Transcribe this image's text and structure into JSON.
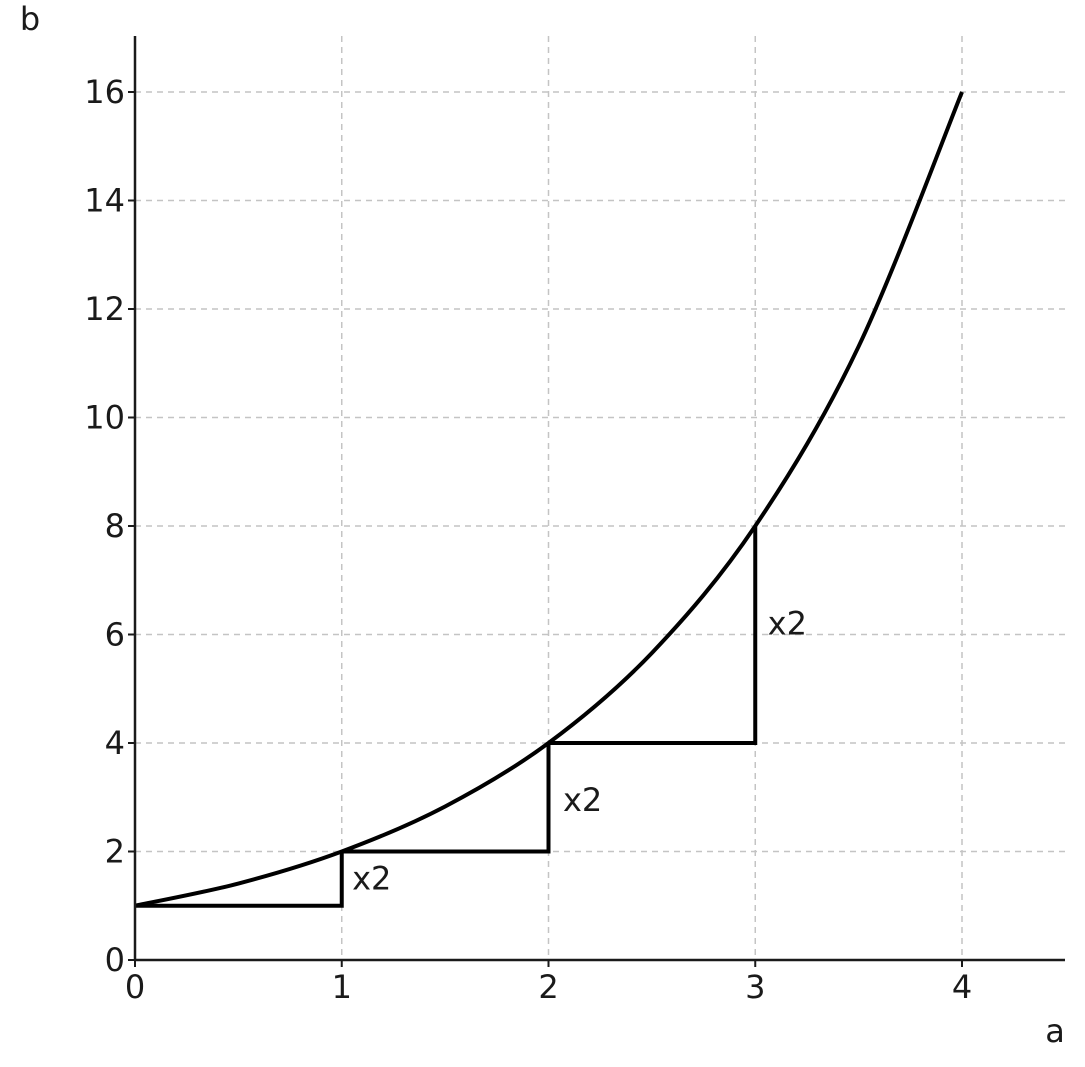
{
  "chart_data": {
    "type": "line",
    "title": "",
    "xlabel": "a",
    "ylabel": "b",
    "xlim": [
      0,
      4.5
    ],
    "ylim": [
      0,
      17
    ],
    "xticks": [
      0,
      1,
      2,
      3,
      4
    ],
    "yticks": [
      0,
      2,
      4,
      6,
      8,
      10,
      12,
      14,
      16
    ],
    "xtick_labels": [
      "0",
      "1",
      "2",
      "3",
      "4"
    ],
    "ytick_labels": [
      "0",
      "2",
      "4",
      "6",
      "8",
      "10",
      "12",
      "14",
      "16"
    ],
    "grid": true,
    "series": [
      {
        "x": [
          0,
          0.5,
          1,
          1.5,
          2,
          2.5,
          3,
          3.5,
          4
        ],
        "y": [
          1,
          1.41,
          2,
          2.83,
          4,
          5.66,
          8,
          11.31,
          16
        ]
      }
    ],
    "steps": [
      {
        "from": [
          0,
          1
        ],
        "corner": [
          1,
          1
        ],
        "to": [
          1,
          2
        ],
        "label": "x2",
        "label_at": [
          1.05,
          1.5
        ]
      },
      {
        "from": [
          1,
          2
        ],
        "corner": [
          2,
          2
        ],
        "to": [
          2,
          4
        ],
        "label": "x2",
        "label_at": [
          2.07,
          2.95
        ]
      },
      {
        "from": [
          2,
          4
        ],
        "corner": [
          3,
          4
        ],
        "to": [
          3,
          8
        ],
        "label": "x2",
        "label_at": [
          3.06,
          6.2
        ]
      }
    ],
    "colors": {
      "line": "#000000",
      "grid": "#c4c4c4",
      "axis": "#1a1a1a"
    }
  }
}
